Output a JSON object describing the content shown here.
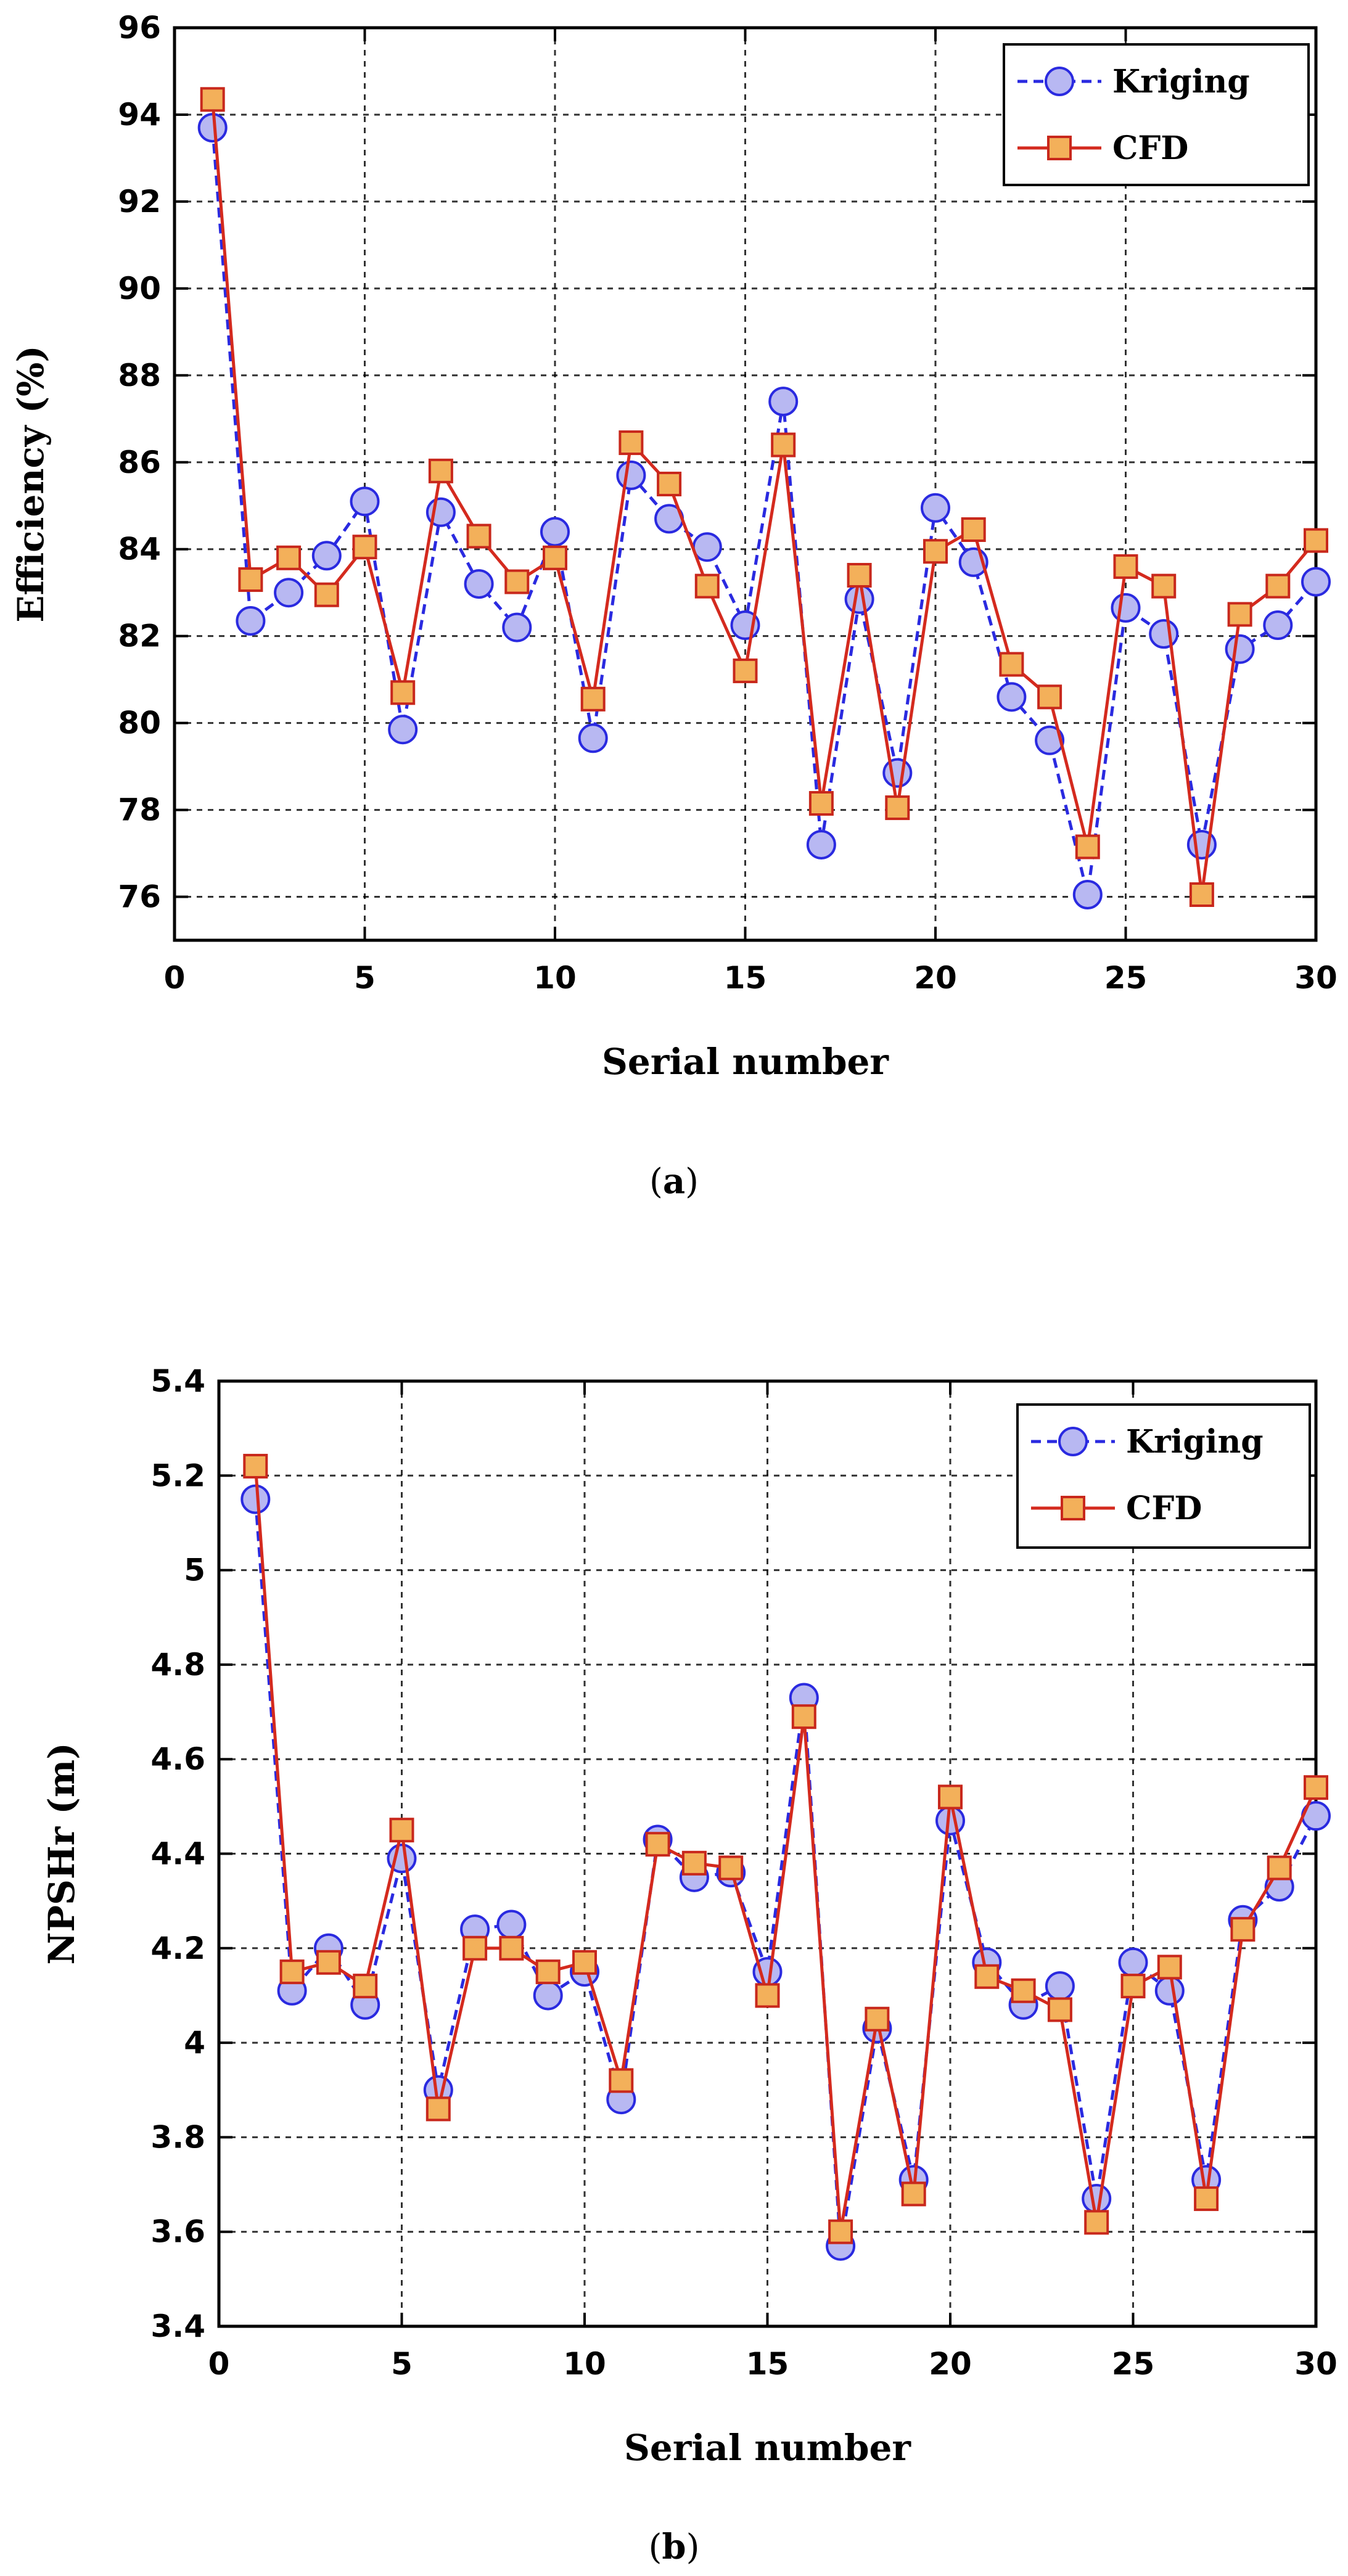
{
  "chart_data": [
    {
      "type": "line",
      "panel_label": "a",
      "title": "",
      "xlabel": "Serial number",
      "ylabel": "Efficiency (%)",
      "xlim": [
        0,
        30
      ],
      "ylim": [
        75,
        96
      ],
      "xticks": [
        0,
        5,
        10,
        15,
        20,
        25,
        30
      ],
      "xtick_labels": [
        "0",
        "5",
        "10",
        "15",
        "20",
        "25",
        "30"
      ],
      "yticks": [
        76,
        78,
        80,
        82,
        84,
        86,
        88,
        90,
        92,
        94,
        96
      ],
      "ytick_labels": [
        "76",
        "78",
        "80",
        "82",
        "84",
        "86",
        "88",
        "90",
        "92",
        "94",
        "96"
      ],
      "grid": true,
      "legend_position": "top-right",
      "x": [
        1,
        2,
        3,
        4,
        5,
        6,
        7,
        8,
        9,
        10,
        11,
        12,
        13,
        14,
        15,
        16,
        17,
        18,
        19,
        20,
        21,
        22,
        23,
        24,
        25,
        26,
        27,
        28,
        29,
        30
      ],
      "series": [
        {
          "name": "Kriging",
          "color": "#2a2ae0",
          "marker": "circle",
          "line_style": "dashed",
          "values": [
            93.7,
            82.35,
            83.0,
            83.85,
            85.1,
            79.85,
            84.85,
            83.2,
            82.2,
            84.4,
            79.65,
            85.7,
            84.7,
            84.05,
            82.25,
            87.4,
            77.2,
            82.85,
            78.85,
            84.95,
            83.7,
            80.6,
            79.6,
            76.05,
            82.65,
            82.05,
            77.2,
            81.7,
            82.25,
            83.25
          ]
        },
        {
          "name": "CFD",
          "color": "#d42a1e",
          "marker": "square",
          "line_style": "solid",
          "values": [
            94.35,
            83.3,
            83.8,
            82.95,
            84.05,
            80.7,
            85.8,
            84.3,
            83.25,
            83.8,
            80.55,
            86.45,
            85.5,
            83.15,
            81.2,
            86.4,
            78.15,
            83.4,
            78.05,
            83.95,
            84.45,
            81.35,
            80.6,
            77.15,
            83.6,
            83.15,
            76.05,
            82.5,
            83.15,
            84.2
          ]
        }
      ]
    },
    {
      "type": "line",
      "panel_label": "b",
      "title": "",
      "xlabel": "Serial number",
      "ylabel": "NPSHr (m)",
      "xlim": [
        0,
        30
      ],
      "ylim": [
        3.4,
        5.4
      ],
      "xticks": [
        0,
        5,
        10,
        15,
        20,
        25,
        30
      ],
      "xtick_labels": [
        "0",
        "5",
        "10",
        "15",
        "20",
        "25",
        "30"
      ],
      "yticks": [
        3.4,
        3.6,
        3.8,
        4.0,
        4.2,
        4.4,
        4.6,
        4.8,
        5.0,
        5.2,
        5.4
      ],
      "ytick_labels": [
        "3.4",
        "3.6",
        "3.8",
        "4",
        "4.2",
        "4.4",
        "4.6",
        "4.8",
        "5",
        "5.2",
        "5.4"
      ],
      "grid": true,
      "legend_position": "top-right",
      "x": [
        1,
        2,
        3,
        4,
        5,
        6,
        7,
        8,
        9,
        10,
        11,
        12,
        13,
        14,
        15,
        16,
        17,
        18,
        19,
        20,
        21,
        22,
        23,
        24,
        25,
        26,
        27,
        28,
        29,
        30
      ],
      "series": [
        {
          "name": "Kriging",
          "color": "#2a2ae0",
          "marker": "circle",
          "line_style": "dashed",
          "values": [
            5.15,
            4.11,
            4.2,
            4.08,
            4.39,
            3.9,
            4.24,
            4.25,
            4.1,
            4.15,
            3.88,
            4.43,
            4.35,
            4.36,
            4.15,
            4.73,
            3.57,
            4.03,
            3.71,
            4.47,
            4.17,
            4.08,
            4.12,
            3.67,
            4.17,
            4.11,
            3.71,
            4.26,
            4.33,
            4.48
          ]
        },
        {
          "name": "CFD",
          "color": "#d42a1e",
          "marker": "square",
          "line_style": "solid",
          "values": [
            5.22,
            4.15,
            4.17,
            4.12,
            4.45,
            3.86,
            4.2,
            4.2,
            4.15,
            4.17,
            3.92,
            4.42,
            4.38,
            4.37,
            4.1,
            4.69,
            3.6,
            4.05,
            3.68,
            4.52,
            4.14,
            4.11,
            4.07,
            3.62,
            4.12,
            4.16,
            3.67,
            4.24,
            4.37,
            4.54
          ]
        }
      ]
    }
  ]
}
